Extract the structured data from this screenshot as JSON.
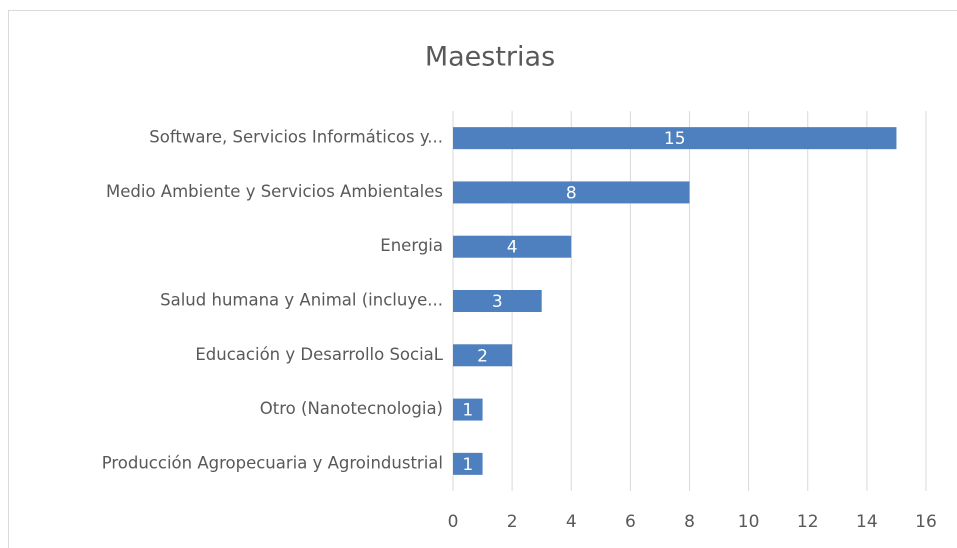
{
  "chart_data": {
    "type": "bar",
    "orientation": "horizontal",
    "title": "Maestrias",
    "categories": [
      "Software, Servicios Informáticos y...",
      "Medio Ambiente y Servicios Ambientales",
      "Energia",
      "Salud humana y Animal (incluye...",
      "Educación y Desarrollo SociaL",
      "Otro (Nanotecnologia)",
      "Producción Agropecuaria y Agroindustrial"
    ],
    "values": [
      15,
      8,
      4,
      3,
      2,
      1,
      1
    ],
    "color": "#4e7fbf",
    "xlim": [
      0,
      16
    ],
    "xticks": [
      0,
      2,
      4,
      6,
      8,
      10,
      12,
      14,
      16
    ],
    "grid": true
  }
}
